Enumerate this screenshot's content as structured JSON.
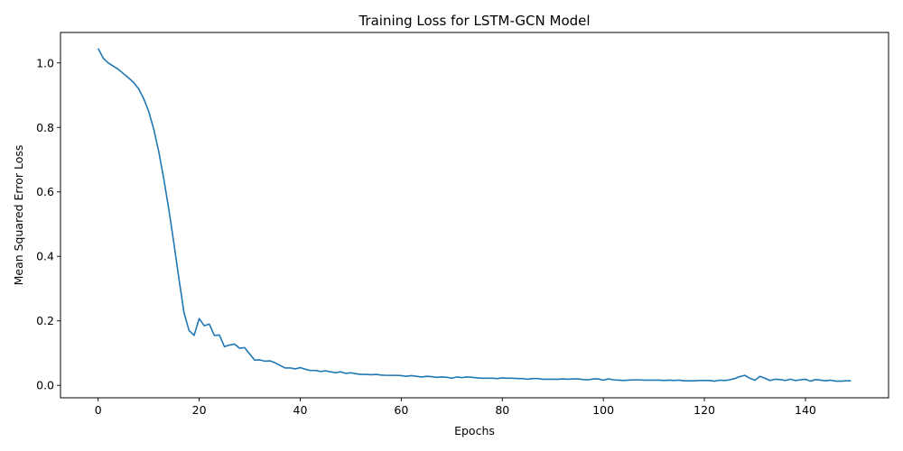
{
  "chart_data": {
    "type": "line",
    "title": "Training Loss for LSTM-GCN Model",
    "xlabel": "Epochs",
    "ylabel": "Mean Squared Error Loss",
    "xlim": [
      -7.45,
      156.45
    ],
    "ylim": [
      -0.0386,
      1.0945
    ],
    "xticks": [
      0,
      20,
      40,
      60,
      80,
      100,
      120,
      140
    ],
    "yticks": [
      0.0,
      0.2,
      0.4,
      0.6,
      0.8,
      1.0
    ],
    "xtick_labels": [
      "0",
      "20",
      "40",
      "60",
      "80",
      "100",
      "120",
      "140"
    ],
    "ytick_labels": [
      "0.0",
      "0.2",
      "0.4",
      "0.6",
      "0.8",
      "1.0"
    ],
    "grid": false,
    "series": [
      {
        "color": "#1f77b4",
        "x": [
          0,
          1,
          2,
          3,
          4,
          5,
          6,
          7,
          8,
          9,
          10,
          11,
          12,
          13,
          14,
          15,
          16,
          17,
          18,
          19,
          20,
          21,
          22,
          23,
          24,
          25,
          26,
          27,
          28,
          29,
          30,
          31,
          32,
          33,
          34,
          35,
          36,
          37,
          38,
          39,
          40,
          41,
          42,
          43,
          44,
          45,
          46,
          47,
          48,
          49,
          50,
          51,
          52,
          53,
          54,
          55,
          56,
          57,
          58,
          59,
          60,
          61,
          62,
          63,
          64,
          65,
          66,
          67,
          68,
          69,
          70,
          71,
          72,
          73,
          74,
          75,
          76,
          77,
          78,
          79,
          80,
          81,
          82,
          83,
          84,
          85,
          86,
          87,
          88,
          89,
          90,
          91,
          92,
          93,
          94,
          95,
          96,
          97,
          98,
          99,
          100,
          101,
          102,
          103,
          104,
          105,
          106,
          107,
          108,
          109,
          110,
          111,
          112,
          113,
          114,
          115,
          116,
          117,
          118,
          119,
          120,
          121,
          122,
          123,
          124,
          125,
          126,
          127,
          128,
          129,
          130,
          131,
          132,
          133,
          134,
          135,
          136,
          137,
          138,
          139,
          140,
          141,
          142,
          143,
          144,
          145,
          146,
          147,
          148,
          149
        ],
        "y": [
          1.045,
          1.015,
          1.0,
          0.99,
          0.98,
          0.967,
          0.954,
          0.94,
          0.92,
          0.89,
          0.85,
          0.795,
          0.725,
          0.64,
          0.545,
          0.44,
          0.33,
          0.225,
          0.17,
          0.155,
          0.207,
          0.185,
          0.19,
          0.155,
          0.156,
          0.12,
          0.125,
          0.128,
          0.115,
          0.117,
          0.097,
          0.078,
          0.079,
          0.075,
          0.076,
          0.07,
          0.062,
          0.054,
          0.054,
          0.051,
          0.055,
          0.05,
          0.046,
          0.046,
          0.043,
          0.045,
          0.042,
          0.039,
          0.042,
          0.037,
          0.039,
          0.036,
          0.034,
          0.034,
          0.033,
          0.034,
          0.032,
          0.031,
          0.031,
          0.031,
          0.03,
          0.028,
          0.03,
          0.028,
          0.026,
          0.028,
          0.027,
          0.025,
          0.026,
          0.025,
          0.022,
          0.026,
          0.024,
          0.026,
          0.025,
          0.023,
          0.022,
          0.022,
          0.022,
          0.021,
          0.023,
          0.022,
          0.022,
          0.021,
          0.021,
          0.019,
          0.021,
          0.021,
          0.019,
          0.019,
          0.019,
          0.019,
          0.02,
          0.019,
          0.02,
          0.02,
          0.018,
          0.017,
          0.02,
          0.02,
          0.016,
          0.02,
          0.017,
          0.016,
          0.015,
          0.016,
          0.017,
          0.017,
          0.016,
          0.016,
          0.016,
          0.016,
          0.015,
          0.016,
          0.015,
          0.016,
          0.014,
          0.014,
          0.014,
          0.015,
          0.015,
          0.015,
          0.013,
          0.016,
          0.015,
          0.017,
          0.021,
          0.027,
          0.031,
          0.022,
          0.016,
          0.028,
          0.022,
          0.015,
          0.019,
          0.018,
          0.015,
          0.019,
          0.015,
          0.017,
          0.019,
          0.013,
          0.018,
          0.016,
          0.014,
          0.016,
          0.013,
          0.013,
          0.014,
          0.014
        ]
      }
    ]
  }
}
